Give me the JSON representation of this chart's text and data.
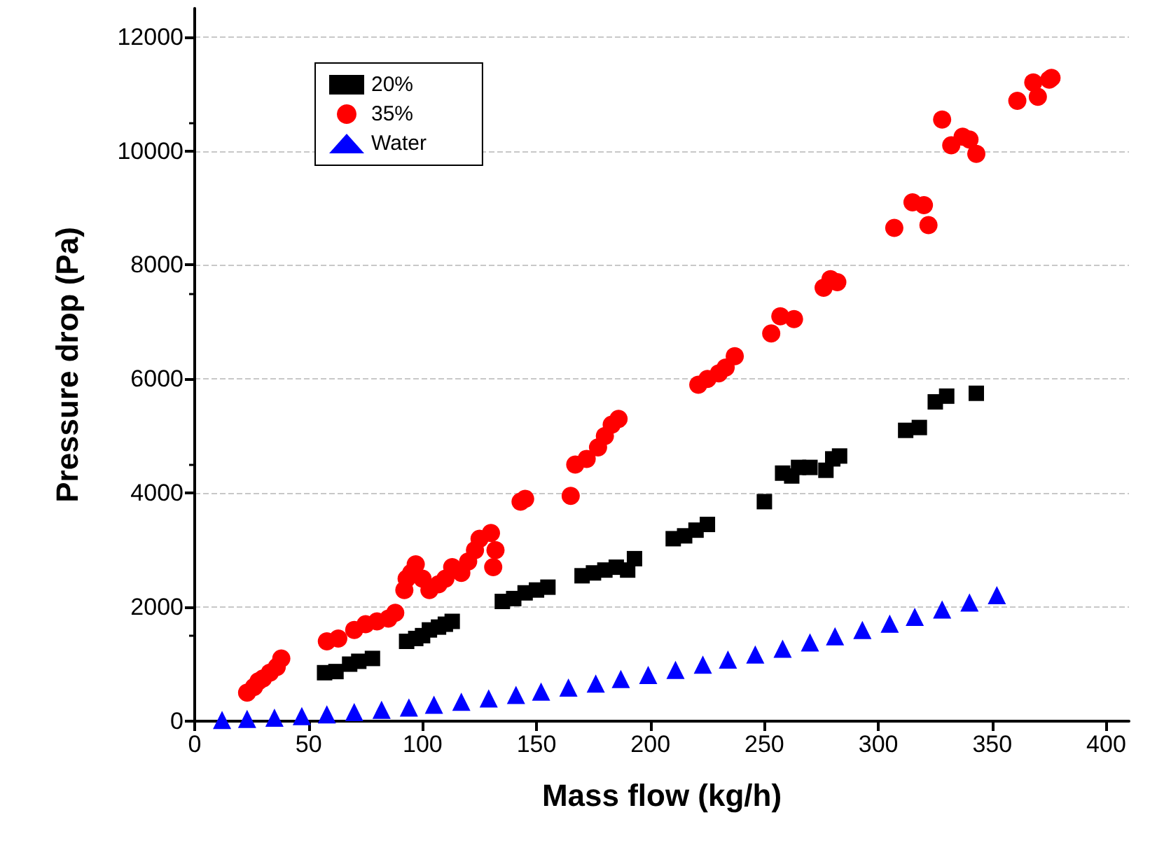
{
  "chart_data": {
    "type": "scatter",
    "xlabel": "Mass flow (kg/h)",
    "ylabel": "Pressure drop (Pa)",
    "xlim": [
      0,
      410
    ],
    "ylim": [
      0,
      12500
    ],
    "xticks": [
      0,
      50,
      100,
      150,
      200,
      250,
      300,
      350,
      400
    ],
    "yticks": [
      0,
      2000,
      4000,
      6000,
      8000,
      10000,
      12000
    ],
    "grid": "y",
    "legend": "top left",
    "series": [
      {
        "name": "20%",
        "color": "#000000",
        "marker": "square",
        "x": [
          57,
          62,
          68,
          72,
          78,
          93,
          97,
          100,
          103,
          107,
          110,
          113,
          135,
          140,
          145,
          150,
          155,
          170,
          175,
          180,
          185,
          190,
          193,
          210,
          215,
          220,
          225,
          250,
          258,
          262,
          265,
          270,
          277,
          280,
          283,
          312,
          318,
          325,
          330,
          343
        ],
        "values": [
          850,
          870,
          1000,
          1050,
          1100,
          1400,
          1450,
          1500,
          1600,
          1650,
          1700,
          1750,
          2100,
          2150,
          2250,
          2300,
          2350,
          2550,
          2600,
          2650,
          2700,
          2650,
          2850,
          3200,
          3250,
          3350,
          3450,
          3850,
          4350,
          4300,
          4450,
          4450,
          4400,
          4600,
          4650,
          5100,
          5150,
          5600,
          5700,
          5750
        ]
      },
      {
        "name": "35%",
        "color": "#ff0000",
        "marker": "circle",
        "x": [
          23,
          26,
          28,
          30,
          33,
          36,
          38,
          58,
          63,
          70,
          75,
          80,
          85,
          88,
          92,
          93,
          95,
          97,
          100,
          103,
          107,
          110,
          113,
          117,
          120,
          123,
          125,
          130,
          132,
          131,
          143,
          145,
          165,
          167,
          172,
          177,
          180,
          183,
          186,
          221,
          225,
          230,
          233,
          237,
          253,
          257,
          263,
          276,
          279,
          282,
          307,
          315,
          320,
          322,
          328,
          332,
          337,
          340,
          343,
          361,
          368,
          370,
          376,
          375
        ],
        "values": [
          500,
          600,
          700,
          750,
          850,
          950,
          1100,
          1400,
          1450,
          1600,
          1700,
          1750,
          1800,
          1900,
          2300,
          2500,
          2600,
          2750,
          2500,
          2300,
          2400,
          2500,
          2700,
          2600,
          2800,
          3000,
          3200,
          3300,
          3000,
          2700,
          3850,
          3900,
          3950,
          4500,
          4600,
          4800,
          5000,
          5200,
          5300,
          5900,
          6000,
          6100,
          6200,
          6400,
          6800,
          7100,
          7050,
          7600,
          7750,
          7700,
          8650,
          9100,
          9050,
          8700,
          10550,
          10100,
          10250,
          10200,
          9950,
          10880,
          11200,
          10950,
          11280,
          11250
        ]
      },
      {
        "name": "Water",
        "color": "#0000ff",
        "marker": "triangle",
        "x": [
          12,
          23,
          35,
          47,
          58,
          70,
          82,
          94,
          105,
          117,
          129,
          141,
          152,
          164,
          176,
          187,
          199,
          211,
          223,
          234,
          246,
          258,
          270,
          281,
          293,
          305,
          316,
          328,
          340,
          352
        ],
        "values": [
          20,
          40,
          60,
          90,
          120,
          160,
          200,
          240,
          290,
          340,
          400,
          460,
          520,
          590,
          660,
          740,
          810,
          900,
          990,
          1080,
          1170,
          1270,
          1380,
          1490,
          1600,
          1710,
          1830,
          1960,
          2080,
          2210
        ]
      }
    ]
  }
}
